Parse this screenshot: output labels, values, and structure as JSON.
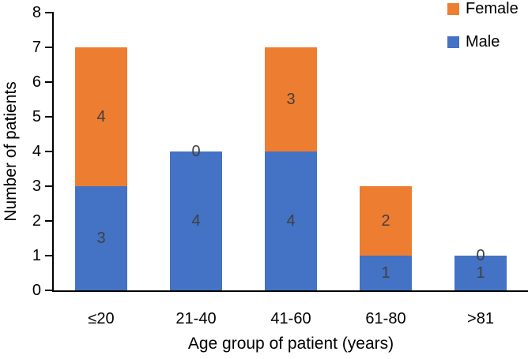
{
  "chart_data": {
    "type": "bar",
    "stacked": true,
    "categories": [
      "≤20",
      "21-40",
      "41-60",
      "61-80",
      ">81"
    ],
    "series": [
      {
        "name": "Male",
        "color": "#4472C4",
        "values": [
          3,
          4,
          4,
          1,
          1
        ]
      },
      {
        "name": "Female",
        "color": "#ED7D31",
        "values": [
          4,
          0,
          3,
          2,
          0
        ]
      }
    ],
    "title": "",
    "xlabel": "Age group of patient (years)",
    "ylabel": "Number of patients",
    "ylim": [
      0,
      8
    ],
    "ytick_step": 1,
    "legend": [
      "Female",
      "Male"
    ],
    "legend_position": "top-right",
    "grid": false,
    "data_label_color": "#404040",
    "axis_color": "#000000",
    "background": "#FFFFFF"
  }
}
